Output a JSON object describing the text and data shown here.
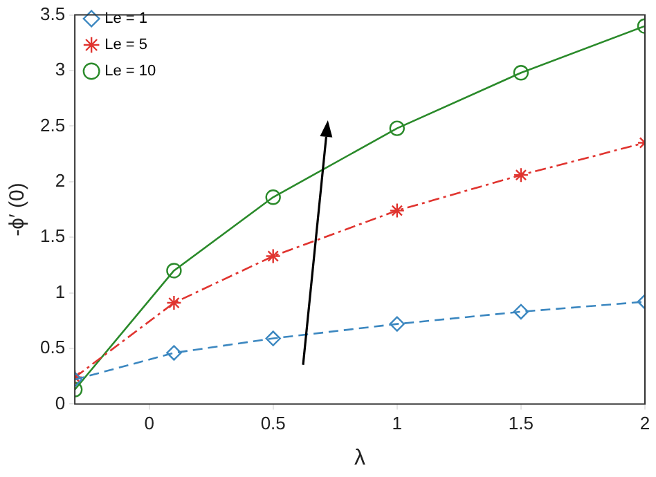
{
  "chart_data": {
    "type": "line",
    "xlabel": "λ",
    "ylabel": "-ϕ′ (0)",
    "x": [
      -0.3,
      0.1,
      0.5,
      1,
      1.5,
      2
    ],
    "series": [
      {
        "name": "Le = 1",
        "color": "#3b87c0",
        "marker": "diamond",
        "line_style": "dashed",
        "values": [
          0.22,
          0.46,
          0.59,
          0.72,
          0.83,
          0.92
        ]
      },
      {
        "name": "Le = 5",
        "color": "#e0342f",
        "marker": "cross",
        "line_style": "dashdot",
        "values": [
          0.24,
          0.91,
          1.33,
          1.74,
          2.06,
          2.35
        ]
      },
      {
        "name": "Le = 10",
        "color": "#2a8a2a",
        "marker": "circle",
        "line_style": "solid",
        "values": [
          0.13,
          1.2,
          1.86,
          2.48,
          2.98,
          3.4
        ]
      }
    ],
    "xlim": [
      -0.3,
      2
    ],
    "xticks": [
      0,
      0.5,
      1,
      1.5,
      2
    ],
    "ylim": [
      0,
      3.5
    ],
    "yticks": [
      0,
      0.5,
      1,
      1.5,
      2,
      2.5,
      3,
      3.5
    ],
    "grid": false,
    "legend": "top left"
  }
}
